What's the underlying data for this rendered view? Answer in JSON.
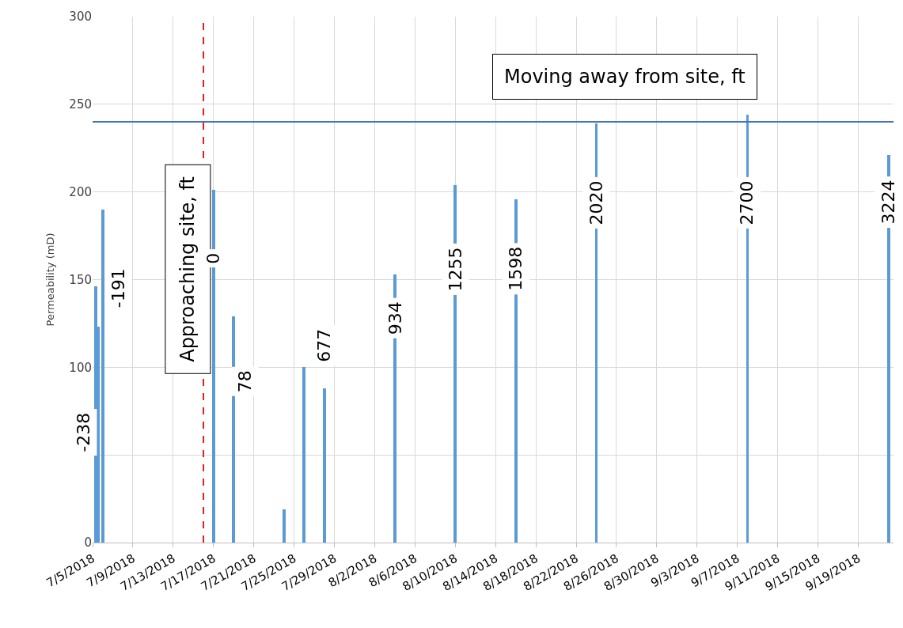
{
  "chart_data": {
    "type": "bar",
    "ylabel": "Permeability (mD)",
    "x": [
      "2018-07-05T08:00",
      "2018-07-05T14:00",
      "2018-07-06",
      "2018-07-17",
      "2018-07-19",
      "2018-07-24",
      "2018-07-26",
      "2018-07-28",
      "2018-08-04",
      "2018-08-10",
      "2018-08-16",
      "2018-08-24",
      "2018-09-08",
      "2018-09-22"
    ],
    "values": [
      146,
      123,
      190,
      201,
      129,
      19,
      100,
      88,
      153,
      204,
      196,
      239,
      244,
      221
    ],
    "color": "#5b9bd5",
    "xlim": [
      "2018-07-05",
      "2018-09-22T12:00"
    ],
    "xticks": [
      {
        "value": "2018-07-05",
        "label": "7/5/2018"
      },
      {
        "value": "2018-07-09",
        "label": "7/9/2018"
      },
      {
        "value": "2018-07-13",
        "label": "7/13/2018"
      },
      {
        "value": "2018-07-17",
        "label": "7/17/2018"
      },
      {
        "value": "2018-07-21",
        "label": "7/21/2018"
      },
      {
        "value": "2018-07-25",
        "label": "7/25/2018"
      },
      {
        "value": "2018-07-29",
        "label": "7/29/2018"
      },
      {
        "value": "2018-08-02",
        "label": "8/2/2018"
      },
      {
        "value": "2018-08-06",
        "label": "8/6/2018"
      },
      {
        "value": "2018-08-10",
        "label": "8/10/2018"
      },
      {
        "value": "2018-08-14",
        "label": "8/14/2018"
      },
      {
        "value": "2018-08-18",
        "label": "8/18/2018"
      },
      {
        "value": "2018-08-22",
        "label": "8/22/2018"
      },
      {
        "value": "2018-08-26",
        "label": "8/26/2018"
      },
      {
        "value": "2018-08-30",
        "label": "8/30/2018"
      },
      {
        "value": "2018-09-03",
        "label": "9/3/2018"
      },
      {
        "value": "2018-09-07",
        "label": "9/7/2018"
      },
      {
        "value": "2018-09-11",
        "label": "9/11/2018"
      },
      {
        "value": "2018-09-15",
        "label": "9/15/2018"
      },
      {
        "value": "2018-09-19",
        "label": "9/19/2018"
      }
    ],
    "ylim": [
      0,
      300
    ],
    "yticks": [
      0,
      {
        "value": 50,
        "label": null
      },
      100,
      150,
      200,
      250,
      300
    ],
    "grid": true,
    "ref_lines": [
      {
        "axis": "y",
        "value": 240,
        "color": "#4472c4",
        "line_style": "solid"
      },
      {
        "axis": "x",
        "value": "2018-07-16",
        "color": "#e02020",
        "line_style": "dashed"
      }
    ],
    "annotations": [
      "Moving away from site, ft",
      "Approaching site, ft",
      {
        "text": "-238",
        "x": "2018-07-05T08:00",
        "y": 63
      },
      {
        "text": "-191",
        "x": "2018-07-06",
        "y": 145
      },
      {
        "text": "0",
        "x": "2018-07-17",
        "y": 162
      },
      {
        "text": "78",
        "x": "2018-07-19",
        "y": 92
      },
      {
        "text": "677",
        "x": "2018-07-28",
        "y": 88
      },
      {
        "text": "934",
        "x": "2018-08-04",
        "y": 128
      },
      {
        "text": "1255",
        "x": "2018-08-10",
        "y": 156
      },
      {
        "text": "1598",
        "x": "2018-08-16",
        "y": 156
      },
      {
        "text": "2020",
        "x": "2018-08-24",
        "y": 194
      },
      {
        "text": "2700",
        "x": "2018-09-08",
        "y": 194
      },
      {
        "text": "3224",
        "x": "2018-09-22",
        "y": 194
      }
    ]
  }
}
